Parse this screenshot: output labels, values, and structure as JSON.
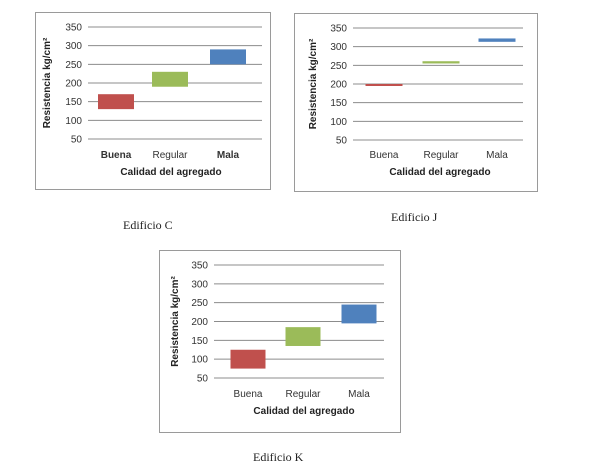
{
  "chart_data": [
    {
      "type": "bar",
      "subtype": "floating-range",
      "caption": "Edificio C",
      "xlabel": "Calidad del agregado",
      "ylabel": "Resistencia kg/cm²",
      "ylim": [
        50,
        350
      ],
      "yticks": [
        50,
        100,
        150,
        200,
        250,
        300,
        350
      ],
      "grid": true,
      "categories": [
        "Buena",
        "Regular",
        "Mala"
      ],
      "category_label_bold": [
        true,
        false,
        true
      ],
      "ranges": [
        [
          130,
          170
        ],
        [
          190,
          230
        ],
        [
          250,
          290
        ]
      ],
      "colors": [
        "#c0504d",
        "#9bbb59",
        "#4f81bd"
      ]
    },
    {
      "type": "bar",
      "subtype": "floating-range",
      "caption": "Edificio J",
      "xlabel": "Calidad del agregado",
      "ylabel": "Resistencia kg/cm²",
      "ylim": [
        50,
        350
      ],
      "yticks": [
        50,
        100,
        150,
        200,
        250,
        300,
        350
      ],
      "grid": true,
      "categories": [
        "Buena",
        "Regular",
        "Mala"
      ],
      "category_label_bold": [
        false,
        false,
        false
      ],
      "ranges": [
        [
          195,
          200
        ],
        [
          255,
          261
        ],
        [
          313,
          322
        ]
      ],
      "colors": [
        "#c0504d",
        "#9bbb59",
        "#4f81bd"
      ]
    },
    {
      "type": "bar",
      "subtype": "floating-range",
      "caption": "Edificio K",
      "xlabel": "Calidad del agregado",
      "ylabel": "Resistencia kg/cm²",
      "ylim": [
        50,
        350
      ],
      "yticks": [
        50,
        100,
        150,
        200,
        250,
        300,
        350
      ],
      "grid": true,
      "categories": [
        "Buena",
        "Regular",
        "Mala"
      ],
      "category_label_bold": [
        false,
        false,
        false
      ],
      "ranges": [
        [
          75,
          125
        ],
        [
          135,
          185
        ],
        [
          195,
          245
        ]
      ],
      "colors": [
        "#c0504d",
        "#9bbb59",
        "#4f81bd"
      ]
    }
  ]
}
